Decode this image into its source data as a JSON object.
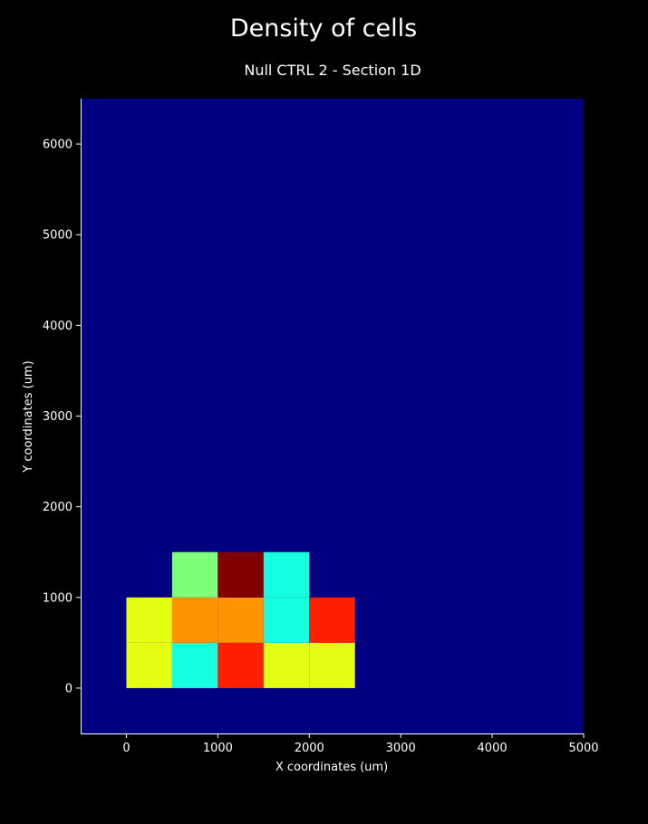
{
  "chart_data": {
    "type": "heatmap",
    "title": "Density of cells",
    "subtitle": "Null CTRL 2 - Section 1D",
    "xlabel": "X coordinates (um)",
    "ylabel": "Y coordinates (um)",
    "xlim": [
      -500,
      5000
    ],
    "ylim": [
      -500,
      6500
    ],
    "xticks": [
      0,
      1000,
      2000,
      3000,
      4000,
      5000
    ],
    "yticks": [
      0,
      1000,
      2000,
      3000,
      4000,
      5000,
      6000
    ],
    "colormap": "jet",
    "background_color": "#000080",
    "grid": false,
    "bin_size": 500,
    "cells": [
      {
        "x0": 0,
        "y0": 0,
        "color": "#e4ff13"
      },
      {
        "x0": 500,
        "y0": 0,
        "color": "#16ffe1"
      },
      {
        "x0": 1000,
        "y0": 0,
        "color": "#ff2000"
      },
      {
        "x0": 1500,
        "y0": 0,
        "color": "#e4ff13"
      },
      {
        "x0": 2000,
        "y0": 0,
        "color": "#e4ff13"
      },
      {
        "x0": 0,
        "y0": 500,
        "color": "#e4ff13"
      },
      {
        "x0": 500,
        "y0": 500,
        "color": "#ff9400"
      },
      {
        "x0": 1000,
        "y0": 500,
        "color": "#ff9400"
      },
      {
        "x0": 1500,
        "y0": 500,
        "color": "#16ffe1"
      },
      {
        "x0": 2000,
        "y0": 500,
        "color": "#ff2000"
      },
      {
        "x0": 500,
        "y0": 1000,
        "color": "#7dff7a"
      },
      {
        "x0": 1000,
        "y0": 1000,
        "color": "#800000"
      },
      {
        "x0": 1500,
        "y0": 1000,
        "color": "#16ffe1"
      }
    ]
  }
}
